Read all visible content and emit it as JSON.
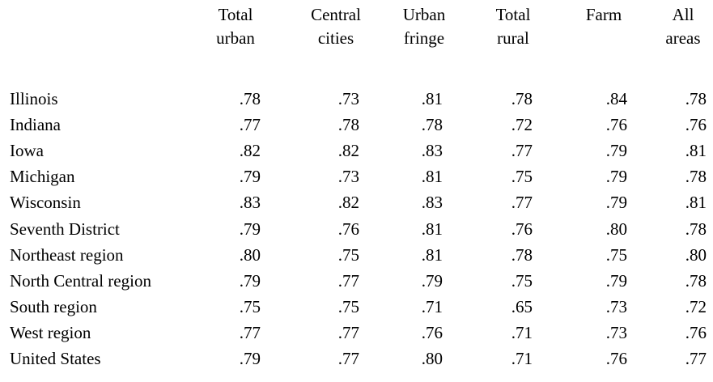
{
  "table": {
    "headers": [
      {
        "line1": "Total",
        "line2": "urban"
      },
      {
        "line1": "Central",
        "line2": "cities"
      },
      {
        "line1": "Urban",
        "line2": "fringe"
      },
      {
        "line1": "Total",
        "line2": "rural"
      },
      {
        "line1": "",
        "line2": "Farm"
      },
      {
        "line1": "All",
        "line2": "areas"
      }
    ],
    "rows": [
      {
        "label": "Illinois",
        "values": [
          ".78",
          ".73",
          ".81",
          ".78",
          ".84",
          ".78"
        ]
      },
      {
        "label": "Indiana",
        "values": [
          ".77",
          ".78",
          ".78",
          ".72",
          ".76",
          ".76"
        ]
      },
      {
        "label": "Iowa",
        "values": [
          ".82",
          ".82",
          ".83",
          ".77",
          ".79",
          ".81"
        ]
      },
      {
        "label": "Michigan",
        "values": [
          ".79",
          ".73",
          ".81",
          ".75",
          ".79",
          ".78"
        ]
      },
      {
        "label": "Wisconsin",
        "values": [
          ".83",
          ".82",
          ".83",
          ".77",
          ".79",
          ".81"
        ]
      },
      {
        "label": "Seventh District",
        "values": [
          ".79",
          ".76",
          ".81",
          ".76",
          ".80",
          ".78"
        ]
      },
      {
        "label": "Northeast region",
        "values": [
          ".80",
          ".75",
          ".81",
          ".78",
          ".75",
          ".80"
        ]
      },
      {
        "label": "North Central region",
        "values": [
          ".79",
          ".77",
          ".79",
          ".75",
          ".79",
          ".78"
        ]
      },
      {
        "label": "South region",
        "values": [
          ".75",
          ".75",
          ".71",
          ".65",
          ".73",
          ".72"
        ]
      },
      {
        "label": "West region",
        "values": [
          ".77",
          ".77",
          ".76",
          ".71",
          ".73",
          ".76"
        ]
      },
      {
        "label": "United States",
        "values": [
          ".79",
          ".77",
          ".80",
          ".71",
          ".76",
          ".77"
        ]
      }
    ]
  }
}
